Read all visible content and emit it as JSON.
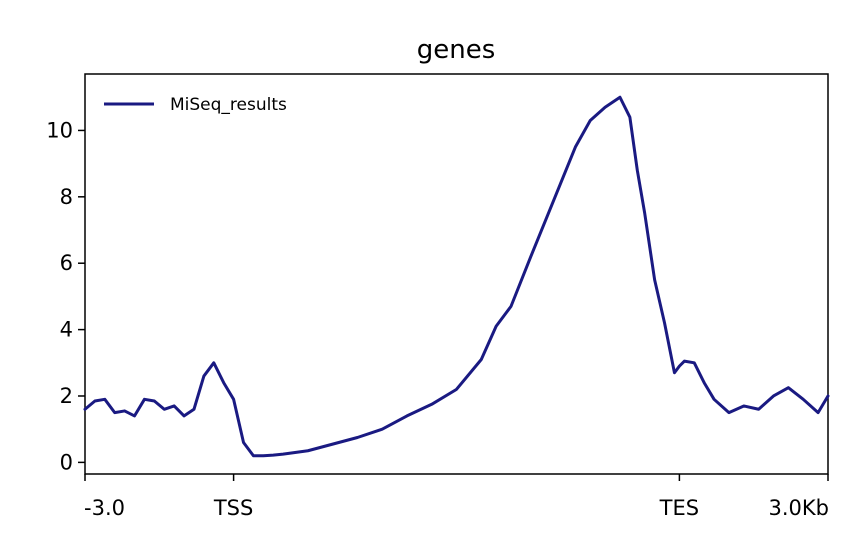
{
  "chart_data": {
    "type": "line",
    "title": "genes",
    "xlabel": "",
    "ylabel": "",
    "x_tick_labels": [
      "-3.0",
      "TSS",
      "TES",
      "3.0Kb"
    ],
    "x_tick_positions": [
      0,
      3,
      12,
      15
    ],
    "x_range": [
      0,
      15
    ],
    "ylim": [
      -0.35,
      11.7
    ],
    "y_ticks": [
      0,
      2,
      4,
      6,
      8,
      10
    ],
    "grid": false,
    "legend": {
      "position": "top-left"
    },
    "series": [
      {
        "name": "MiSeq_results",
        "color": "#1a1a82",
        "x": [
          0,
          0.2,
          0.4,
          0.6,
          0.8,
          1.0,
          1.2,
          1.4,
          1.6,
          1.8,
          2.0,
          2.2,
          2.4,
          2.6,
          2.8,
          3.0,
          3.2,
          3.4,
          3.6,
          3.8,
          4.0,
          4.5,
          5.0,
          5.5,
          6.0,
          6.5,
          7.0,
          7.5,
          8.0,
          8.3,
          8.6,
          9.0,
          9.3,
          9.6,
          9.9,
          10.2,
          10.5,
          10.8,
          11.0,
          11.15,
          11.3,
          11.5,
          11.7,
          11.9,
          12.0,
          12.1,
          12.3,
          12.5,
          12.7,
          13.0,
          13.3,
          13.6,
          13.9,
          14.2,
          14.5,
          14.8,
          15.0
        ],
        "values": [
          1.6,
          1.85,
          1.9,
          1.5,
          1.55,
          1.4,
          1.9,
          1.85,
          1.6,
          1.7,
          1.4,
          1.6,
          2.6,
          3.0,
          2.4,
          1.9,
          0.6,
          0.2,
          0.2,
          0.22,
          0.25,
          0.35,
          0.55,
          0.75,
          1.0,
          1.4,
          1.75,
          2.2,
          3.1,
          4.1,
          4.7,
          6.2,
          7.3,
          8.4,
          9.5,
          10.3,
          10.7,
          11.0,
          10.4,
          8.8,
          7.5,
          5.5,
          4.2,
          2.7,
          2.9,
          3.05,
          3.0,
          2.4,
          1.9,
          1.5,
          1.7,
          1.6,
          2.0,
          2.25,
          1.9,
          1.5,
          2.0
        ]
      }
    ]
  }
}
